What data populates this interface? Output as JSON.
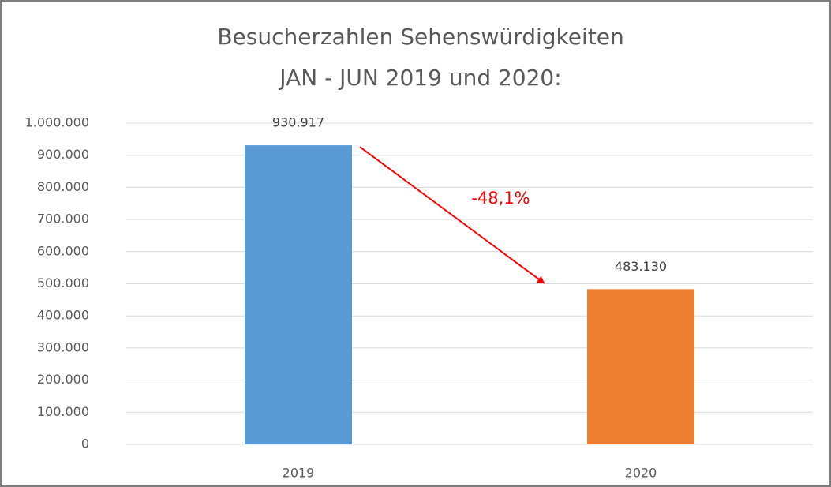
{
  "chart_data": {
    "type": "bar",
    "title": [
      "Besucherzahlen Sehenswürdigkeiten",
      "JAN - JUN 2019 und 2020:"
    ],
    "categories": [
      "2019",
      "2020"
    ],
    "values": [
      930917,
      483130
    ],
    "value_labels": [
      "930.917",
      "483.130"
    ],
    "colors": [
      "#5b9bd5",
      "#ed7d31"
    ],
    "ylim": [
      0,
      1000000
    ],
    "yticks": [
      0,
      {
        "value": 100000,
        "label": "100.000"
      },
      {
        "value": 200000,
        "label": "200.000"
      },
      {
        "value": 300000,
        "label": "300.000"
      },
      {
        "value": 400000,
        "label": "400.000"
      },
      {
        "value": 500000,
        "label": "500.000"
      },
      {
        "value": 600000,
        "label": "600.000"
      },
      {
        "value": 700000,
        "label": "700.000"
      },
      {
        "value": 800000,
        "label": "800.000"
      },
      {
        "value": 900000,
        "label": "900.000"
      },
      {
        "value": 1000000,
        "label": "1.000.000"
      }
    ],
    "grid": true,
    "annotation": {
      "text": "-48,1%",
      "color": "#ff0000"
    }
  }
}
